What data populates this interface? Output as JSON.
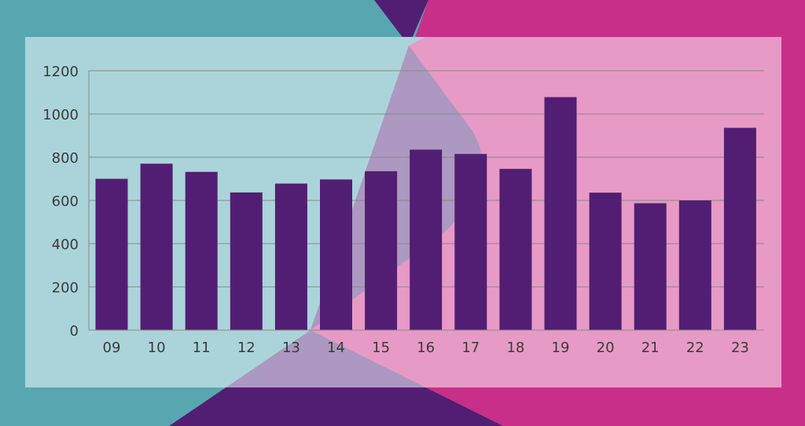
{
  "colors": {
    "teal": "#58A7B0",
    "magenta": "#C82F89",
    "purple": "#521E73",
    "panel_left": "#ABD4DA",
    "panel_right": "#E79AC6",
    "panel_overlap": "#AC98C0",
    "bar": "#521E73",
    "grid": "#8A8A8A",
    "tick_text": "#3A3A3A"
  },
  "chart_data": {
    "type": "bar",
    "title": "",
    "xlabel": "",
    "ylabel": "",
    "categories": [
      "09",
      "10",
      "11",
      "12",
      "13",
      "14",
      "15",
      "16",
      "17",
      "18",
      "19",
      "20",
      "21",
      "22",
      "23"
    ],
    "values": [
      700,
      770,
      732,
      637,
      678,
      697,
      735,
      835,
      815,
      746,
      1078,
      636,
      587,
      600,
      936
    ],
    "ylim": [
      0,
      1200
    ],
    "yticks": [
      0,
      200,
      400,
      600,
      800,
      1000,
      1200
    ],
    "grid": true,
    "legend": "none"
  }
}
